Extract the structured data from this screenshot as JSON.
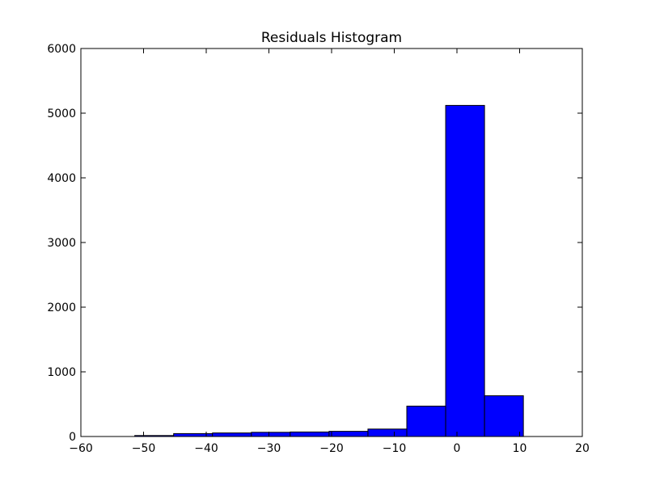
{
  "chart_data": {
    "type": "bar",
    "title": "Residuals Histogram",
    "xlabel": "",
    "ylabel": "",
    "xlim": [
      -60,
      20
    ],
    "ylim": [
      0,
      6000
    ],
    "x_ticks": [
      -60,
      -50,
      -40,
      -30,
      -20,
      -10,
      0,
      10,
      20
    ],
    "y_ticks": [
      0,
      1000,
      2000,
      3000,
      4000,
      5000,
      6000
    ],
    "bar_color": "#0000ff",
    "edge_color": "#000000",
    "grid": false,
    "bins": [
      {
        "x0": -51.4,
        "x1": -45.2,
        "value": 15
      },
      {
        "x0": -45.2,
        "x1": -39.0,
        "value": 45
      },
      {
        "x0": -39.0,
        "x1": -32.8,
        "value": 55
      },
      {
        "x0": -32.8,
        "x1": -26.6,
        "value": 65
      },
      {
        "x0": -26.6,
        "x1": -20.4,
        "value": 70
      },
      {
        "x0": -20.4,
        "x1": -14.2,
        "value": 80
      },
      {
        "x0": -14.2,
        "x1": -8.0,
        "value": 115
      },
      {
        "x0": -8.0,
        "x1": -1.8,
        "value": 470
      },
      {
        "x0": -1.8,
        "x1": 4.4,
        "value": 5120
      },
      {
        "x0": 4.4,
        "x1": 10.6,
        "value": 630
      }
    ]
  }
}
